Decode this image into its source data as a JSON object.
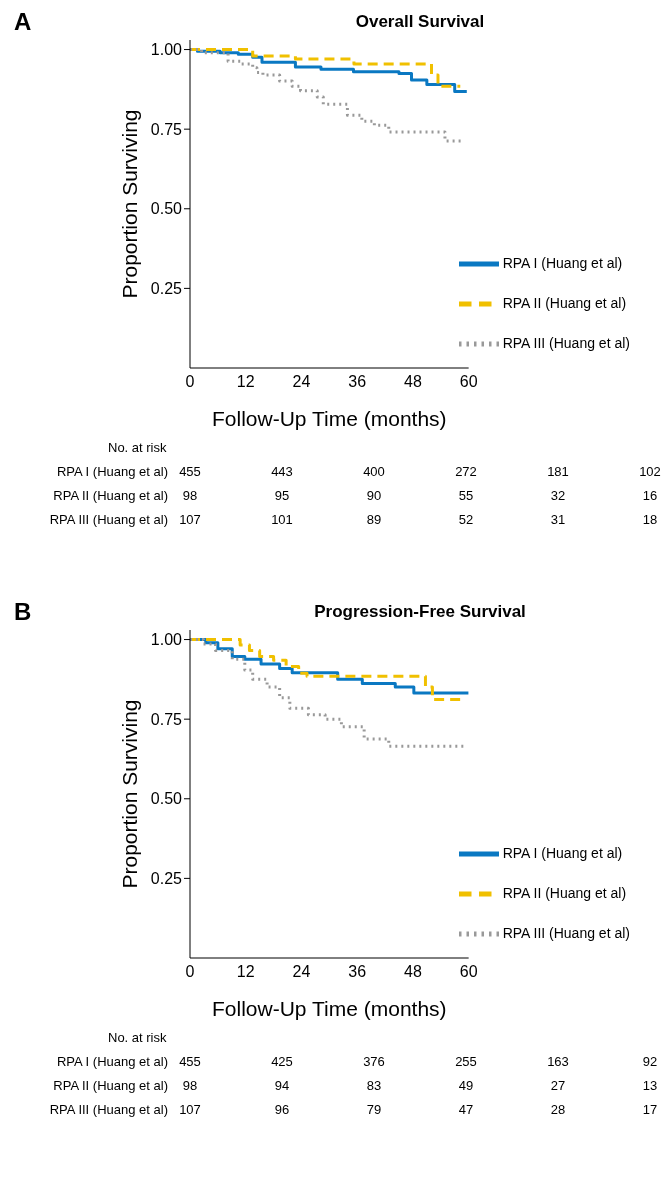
{
  "chart_data": [
    {
      "type": "step",
      "title": "Overall Survival",
      "xlabel": "Follow-Up Time (months)",
      "ylabel": "Proportion Surviving",
      "xlim": [
        0,
        60
      ],
      "xticks": [
        0,
        12,
        24,
        36,
        48,
        60
      ],
      "ylim": [
        0,
        1.03
      ],
      "yticks": [
        {
          "value": 0.25,
          "label": "0.25"
        },
        {
          "value": 0.5,
          "label": "0.50"
        },
        {
          "value": 0.75,
          "label": "0.75"
        },
        {
          "value": 1,
          "label": "1.00"
        }
      ],
      "grid": false,
      "legend": "bottom right",
      "marker": "none",
      "annotations": [
        "A",
        "No. at risk",
        "RPA I (Huang et al)",
        "455",
        "443",
        "400",
        "272",
        "181",
        "102",
        "RPA II (Huang et al)",
        "98",
        "95",
        "90",
        "55",
        "32",
        "16",
        "RPA III (Huang et al)",
        "107",
        "101",
        "89",
        "52",
        "31",
        "18"
      ],
      "series": [
        {
          "name": "RPA I (Huang et al)",
          "color": "#0a78c2",
          "line_style": "solid",
          "x": [
            0,
            1.6,
            6.5,
            10.4,
            13.5,
            15.5,
            22.7,
            28.2,
            35.2,
            45,
            47.7,
            51,
            57,
            59.6
          ],
          "values": [
            1,
            0.995,
            0.99,
            0.985,
            0.976,
            0.96,
            0.945,
            0.938,
            0.93,
            0.925,
            0.904,
            0.89,
            0.868,
            0.868
          ]
        },
        {
          "name": "RPA II (Huang et al)",
          "color": "#f0c000",
          "line_style": "dashed",
          "x": [
            0,
            13.5,
            22.7,
            35.3,
            52,
            53.4,
            58.2
          ],
          "values": [
            1,
            0.98,
            0.97,
            0.955,
            0.92,
            0.885,
            0.885
          ]
        },
        {
          "name": "RPA III (Huang et al)",
          "color": "#999999",
          "line_style": "dotted",
          "x": [
            0,
            2.5,
            8.2,
            10.9,
            13.5,
            14.4,
            15.7,
            19.3,
            22,
            23.8,
            27.4,
            28.7,
            33.9,
            37,
            39.7,
            42.8,
            54.9,
            58.8
          ],
          "values": [
            1,
            0.99,
            0.963,
            0.955,
            0.943,
            0.928,
            0.92,
            0.901,
            0.885,
            0.871,
            0.851,
            0.828,
            0.794,
            0.775,
            0.762,
            0.741,
            0.713,
            0.713
          ]
        }
      ]
    },
    {
      "type": "step",
      "title": "Progression-Free Survival",
      "xlabel": "Follow-Up Time (months)",
      "ylabel": "Proportion Surviving",
      "xlim": [
        0,
        60
      ],
      "xticks": [
        0,
        12,
        24,
        36,
        48,
        60
      ],
      "ylim": [
        0,
        1.03
      ],
      "yticks": [
        {
          "value": 0.25,
          "label": "0.25"
        },
        {
          "value": 0.5,
          "label": "0.50"
        },
        {
          "value": 0.75,
          "label": "0.75"
        },
        {
          "value": 1,
          "label": "1.00"
        }
      ],
      "grid": false,
      "legend": "bottom right",
      "marker": "none",
      "annotations": [
        "B",
        "No. at risk",
        "RPA I (Huang et al)",
        "455",
        "425",
        "376",
        "255",
        "163",
        "92",
        "RPA II (Huang et al)",
        "98",
        "94",
        "83",
        "49",
        "27",
        "13",
        "RPA III (Huang et al)",
        "107",
        "96",
        "79",
        "47",
        "28",
        "17"
      ],
      "series": [
        {
          "name": "RPA I (Huang et al)",
          "color": "#0a78c2",
          "line_style": "solid",
          "x": [
            0,
            3.4,
            6,
            9.1,
            11.8,
            15.3,
            19.3,
            22,
            31.8,
            37.1,
            44.2,
            48.2,
            60
          ],
          "values": [
            1,
            0.99,
            0.971,
            0.947,
            0.938,
            0.923,
            0.909,
            0.896,
            0.875,
            0.862,
            0.851,
            0.832,
            0.832
          ]
        },
        {
          "name": "RPA II (Huang et al)",
          "color": "#f0c000",
          "line_style": "dashed",
          "x": [
            0,
            10.8,
            12.8,
            15,
            18,
            20.7,
            23.4,
            25.2,
            50.7,
            52.2,
            58.4
          ],
          "values": [
            1,
            0.983,
            0.966,
            0.947,
            0.935,
            0.915,
            0.894,
            0.885,
            0.851,
            0.812,
            0.812
          ]
        },
        {
          "name": "RPA III (Huang et al)",
          "color": "#999999",
          "line_style": "dotted",
          "x": [
            0,
            2.9,
            5.5,
            9.1,
            11.8,
            13.5,
            16.6,
            19.3,
            21.5,
            25.5,
            29.1,
            32.6,
            37.5,
            42.8,
            59.6
          ],
          "values": [
            1,
            0.986,
            0.966,
            0.938,
            0.904,
            0.875,
            0.851,
            0.817,
            0.784,
            0.764,
            0.75,
            0.726,
            0.688,
            0.665,
            0.665
          ]
        }
      ]
    }
  ]
}
